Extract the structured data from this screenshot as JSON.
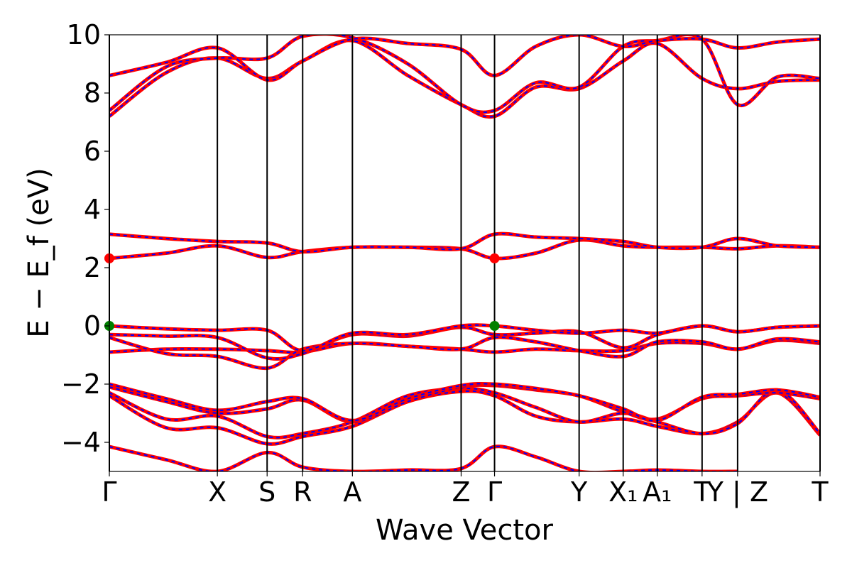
{
  "chart_data": {
    "type": "line",
    "title": "",
    "xlabel": "Wave Vector",
    "ylabel": "E − E_f (eV)",
    "ylim": [
      -5,
      10
    ],
    "yticks": [
      "−4",
      "−2",
      "0",
      "2",
      "4",
      "6",
      "8",
      "10"
    ],
    "ytick_values": [
      -4,
      -2,
      0,
      2,
      4,
      6,
      8,
      10
    ],
    "kpath": {
      "labels": [
        "Γ",
        "X",
        "S",
        "R",
        "A",
        "Z",
        "Γ",
        "Y",
        "X₁",
        "A₁",
        "T",
        "Y | Z",
        "T"
      ],
      "positions": [
        0.0,
        0.152,
        0.222,
        0.272,
        0.342,
        0.495,
        0.542,
        0.661,
        0.723,
        0.771,
        0.834,
        0.884,
        1.0
      ]
    },
    "grid": false,
    "legend": "none",
    "colors": {
      "band_outer": "#ff0000",
      "band_inner": "#0000ff",
      "cbm_marker": "#ff0000",
      "vbm_marker": "#008000",
      "kline": "#000000"
    },
    "band_edges": {
      "cbm": [
        {
          "k": 0.0,
          "E": 2.32
        },
        {
          "k": 0.542,
          "E": 2.32
        }
      ],
      "vbm": [
        {
          "k": 0.0,
          "E": 0.0
        },
        {
          "k": 0.542,
          "E": 0.0
        }
      ]
    },
    "bands": [
      {
        "k": [
          0.0,
          0.08,
          0.152,
          0.222,
          0.272,
          0.342,
          0.42,
          0.495,
          0.542,
          0.6,
          0.661,
          0.723,
          0.771,
          0.834,
          0.884
        ],
        "E": [
          -4.15,
          -4.6,
          -5.0,
          -4.35,
          -4.85,
          -5.0,
          -4.95,
          -4.9,
          -4.15,
          -4.5,
          -5.0,
          -5.0,
          -4.95,
          -5.0,
          -5.0
        ]
      },
      {
        "k": [
          0.0,
          0.08,
          0.152,
          0.222,
          0.272,
          0.342,
          0.42,
          0.495,
          0.542,
          0.6,
          0.661,
          0.723,
          0.771,
          0.834,
          0.884,
          0.94,
          1.0
        ],
        "E": [
          -2.4,
          -3.5,
          -3.5,
          -4.05,
          -3.8,
          -3.45,
          -2.6,
          -2.25,
          -2.4,
          -3.1,
          -3.3,
          -3.2,
          -3.45,
          -3.7,
          -3.3,
          -2.3,
          -3.75
        ]
      },
      {
        "k": [
          0.0,
          0.08,
          0.152,
          0.222,
          0.272,
          0.342,
          0.42,
          0.495,
          0.542,
          0.6,
          0.661,
          0.723,
          0.771,
          0.834,
          0.884,
          0.94,
          1.0
        ],
        "E": [
          -2.3,
          -3.2,
          -3.1,
          -3.8,
          -3.7,
          -3.3,
          -2.4,
          -2.15,
          -2.3,
          -2.8,
          -3.3,
          -3.0,
          -3.3,
          -3.7,
          -3.35,
          -2.2,
          -3.7
        ]
      },
      {
        "k": [
          0.0,
          0.08,
          0.152,
          0.222,
          0.272,
          0.342,
          0.42,
          0.495,
          0.542,
          0.6,
          0.661,
          0.723,
          0.771,
          0.834,
          0.884,
          0.94,
          1.0
        ],
        "E": [
          -2.1,
          -2.6,
          -3.0,
          -2.85,
          -2.55,
          -3.3,
          -2.6,
          -2.1,
          -2.05,
          -2.2,
          -2.4,
          -2.95,
          -3.2,
          -2.5,
          -2.4,
          -2.3,
          -2.5
        ]
      },
      {
        "k": [
          0.0,
          0.08,
          0.152,
          0.222,
          0.272,
          0.342,
          0.42,
          0.495,
          0.542,
          0.6,
          0.661,
          0.723,
          0.771,
          0.834,
          0.884,
          0.94,
          1.0
        ],
        "E": [
          -2.0,
          -2.5,
          -2.9,
          -2.6,
          -2.5,
          -3.25,
          -2.5,
          -2.05,
          -2.0,
          -2.15,
          -2.4,
          -2.85,
          -3.25,
          -2.45,
          -2.35,
          -2.2,
          -2.45
        ]
      },
      {
        "k": [
          0.0,
          0.08,
          0.152,
          0.222,
          0.272,
          0.342,
          0.42,
          0.495,
          0.542,
          0.6,
          0.661,
          0.723,
          0.771,
          0.834,
          0.884,
          0.94,
          1.0
        ],
        "E": [
          -0.9,
          -0.8,
          -0.8,
          -0.85,
          -0.9,
          -0.6,
          -0.7,
          -0.8,
          -0.9,
          -0.8,
          -0.85,
          -0.85,
          -0.6,
          -0.6,
          -0.8,
          -0.5,
          -0.6
        ]
      },
      {
        "k": [
          0.0,
          0.08,
          0.152,
          0.222,
          0.272,
          0.342,
          0.42,
          0.495,
          0.542,
          0.6,
          0.661,
          0.723,
          0.771,
          0.834,
          0.884,
          0.94,
          1.0
        ],
        "E": [
          -0.4,
          -0.95,
          -1.05,
          -1.45,
          -0.8,
          -0.6,
          -0.7,
          -0.8,
          -0.4,
          -0.55,
          -0.85,
          -1.05,
          -0.55,
          -0.55,
          -0.8,
          -0.45,
          -0.55
        ]
      },
      {
        "k": [
          0.0,
          0.08,
          0.152,
          0.222,
          0.272,
          0.342,
          0.42,
          0.495,
          0.542,
          0.6,
          0.661,
          0.723,
          0.771,
          0.834,
          0.884,
          0.94,
          1.0
        ],
        "E": [
          -0.3,
          -0.35,
          -0.4,
          -1.1,
          -0.95,
          -0.3,
          -0.35,
          -0.05,
          -0.3,
          -0.25,
          -0.2,
          -0.75,
          -0.3,
          0.0,
          -0.2,
          -0.05,
          0.0
        ]
      },
      {
        "k": [
          0.0,
          0.08,
          0.152,
          0.222,
          0.272,
          0.342,
          0.42,
          0.495,
          0.542,
          0.6,
          0.661,
          0.723,
          0.771,
          0.834,
          0.884,
          0.94,
          1.0
        ],
        "E": [
          0.0,
          -0.1,
          -0.15,
          -0.15,
          -0.85,
          -0.25,
          -0.3,
          0.0,
          0.0,
          -0.15,
          -0.25,
          -0.15,
          -0.25,
          0.0,
          -0.2,
          -0.05,
          0.0
        ]
      },
      {
        "k": [
          0.0,
          0.08,
          0.152,
          0.222,
          0.272,
          0.342,
          0.42,
          0.495,
          0.542,
          0.6,
          0.661,
          0.723,
          0.771,
          0.834,
          0.884,
          0.94,
          1.0
        ],
        "E": [
          2.32,
          2.5,
          2.75,
          2.35,
          2.55,
          2.7,
          2.7,
          2.65,
          2.32,
          2.5,
          2.95,
          2.75,
          2.7,
          2.7,
          2.65,
          2.75,
          2.7
        ]
      },
      {
        "k": [
          0.0,
          0.08,
          0.152,
          0.222,
          0.272,
          0.342,
          0.42,
          0.495,
          0.542,
          0.6,
          0.661,
          0.723,
          0.771,
          0.834,
          0.884,
          0.94,
          1.0
        ],
        "E": [
          3.15,
          3.0,
          2.9,
          2.85,
          2.55,
          2.7,
          2.7,
          2.65,
          3.15,
          3.05,
          3.0,
          2.9,
          2.7,
          2.7,
          3.0,
          2.75,
          2.7
        ]
      },
      {
        "k": [
          0.0,
          0.08,
          0.152,
          0.222,
          0.272,
          0.342,
          0.42,
          0.495,
          0.542,
          0.6,
          0.661,
          0.723,
          0.771,
          0.834,
          0.884,
          0.94,
          1.0
        ],
        "E": [
          7.2,
          8.7,
          9.2,
          8.5,
          9.1,
          9.8,
          8.6,
          7.6,
          7.2,
          8.2,
          8.15,
          9.1,
          9.7,
          8.5,
          8.15,
          8.4,
          8.45
        ]
      },
      {
        "k": [
          0.0,
          0.08,
          0.152,
          0.222,
          0.272,
          0.342,
          0.42,
          0.495,
          0.542,
          0.6,
          0.661,
          0.723,
          0.771,
          0.834,
          0.884,
          0.94,
          1.0
        ],
        "E": [
          7.4,
          8.9,
          9.2,
          9.2,
          9.95,
          9.9,
          9.0,
          7.6,
          7.4,
          8.35,
          8.2,
          9.6,
          9.8,
          9.85,
          7.6,
          8.55,
          8.5
        ]
      },
      {
        "k": [
          0.0,
          0.08,
          0.152,
          0.222,
          0.272,
          0.342,
          0.42,
          0.495,
          0.542,
          0.6,
          0.661,
          0.723,
          0.771,
          0.834,
          0.884,
          0.94,
          1.0
        ],
        "E": [
          8.6,
          9.05,
          9.55,
          8.45,
          9.1,
          9.85,
          9.7,
          9.5,
          8.6,
          9.6,
          10.0,
          9.6,
          9.8,
          9.85,
          9.55,
          9.75,
          9.85
        ]
      }
    ]
  }
}
